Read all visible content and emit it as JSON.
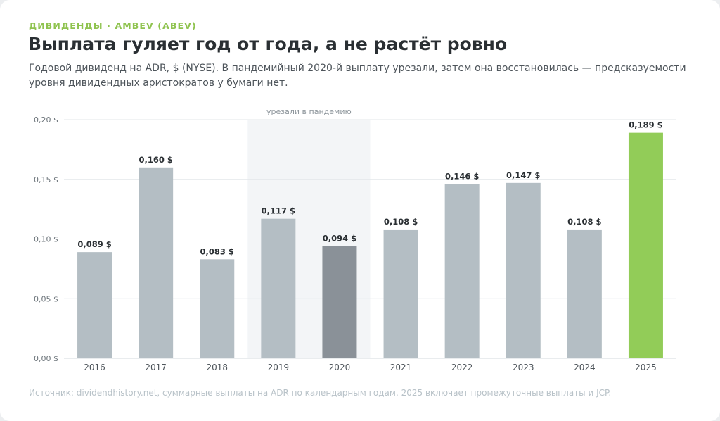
{
  "header": {
    "kicker": "ДИВИДЕНДЫ · AMBEV (ABEV)",
    "title": "Выплата гуляет год от года, а не растёт ровно",
    "subtitle": "Годовой дивиденд на ADR, $ (NYSE). В пандемийный 2020-й выплату урезали, затем она восстановилась — предсказуемости уровня дивидендных аристократов у бумаги нет."
  },
  "footer": {
    "source": "Источник: dividendhistory.net, суммарные выплаты на ADR по календарным годам. 2025 включает промежуточные выплаты и JCP."
  },
  "colors": {
    "bar_default": "#b4bec4",
    "bar_cut": "#8a9198",
    "bar_latest": "#92cc58",
    "band": "#f3f5f7",
    "grid": "#e3e7ea"
  },
  "chart_data": {
    "type": "bar",
    "categories": [
      "2016",
      "2017",
      "2018",
      "2019",
      "2020",
      "2021",
      "2022",
      "2023",
      "2024",
      "2025"
    ],
    "values": [
      0.089,
      0.16,
      0.083,
      0.117,
      0.094,
      0.108,
      0.146,
      0.147,
      0.108,
      0.189
    ],
    "value_labels": [
      "0,089 $",
      "0,160 $",
      "0,083 $",
      "0,117 $",
      "0,094 $",
      "0,108 $",
      "0,146 $",
      "0,147 $",
      "0,108 $",
      "0,189 $"
    ],
    "highlight": {
      "cut_year": "2020",
      "latest_year": "2025"
    },
    "ylim": [
      0,
      0.2
    ],
    "yticks": [
      0,
      0.05,
      0.1,
      0.15,
      0.2
    ],
    "ytick_labels": [
      "0,00 $",
      "0,05 $",
      "0,10 $",
      "0,15 $",
      "0,20 $"
    ],
    "annotation": {
      "text": "урезали в пандемию",
      "from": "2019",
      "to": "2020"
    },
    "grid": true,
    "title": "",
    "xlabel": "",
    "ylabel": ""
  }
}
